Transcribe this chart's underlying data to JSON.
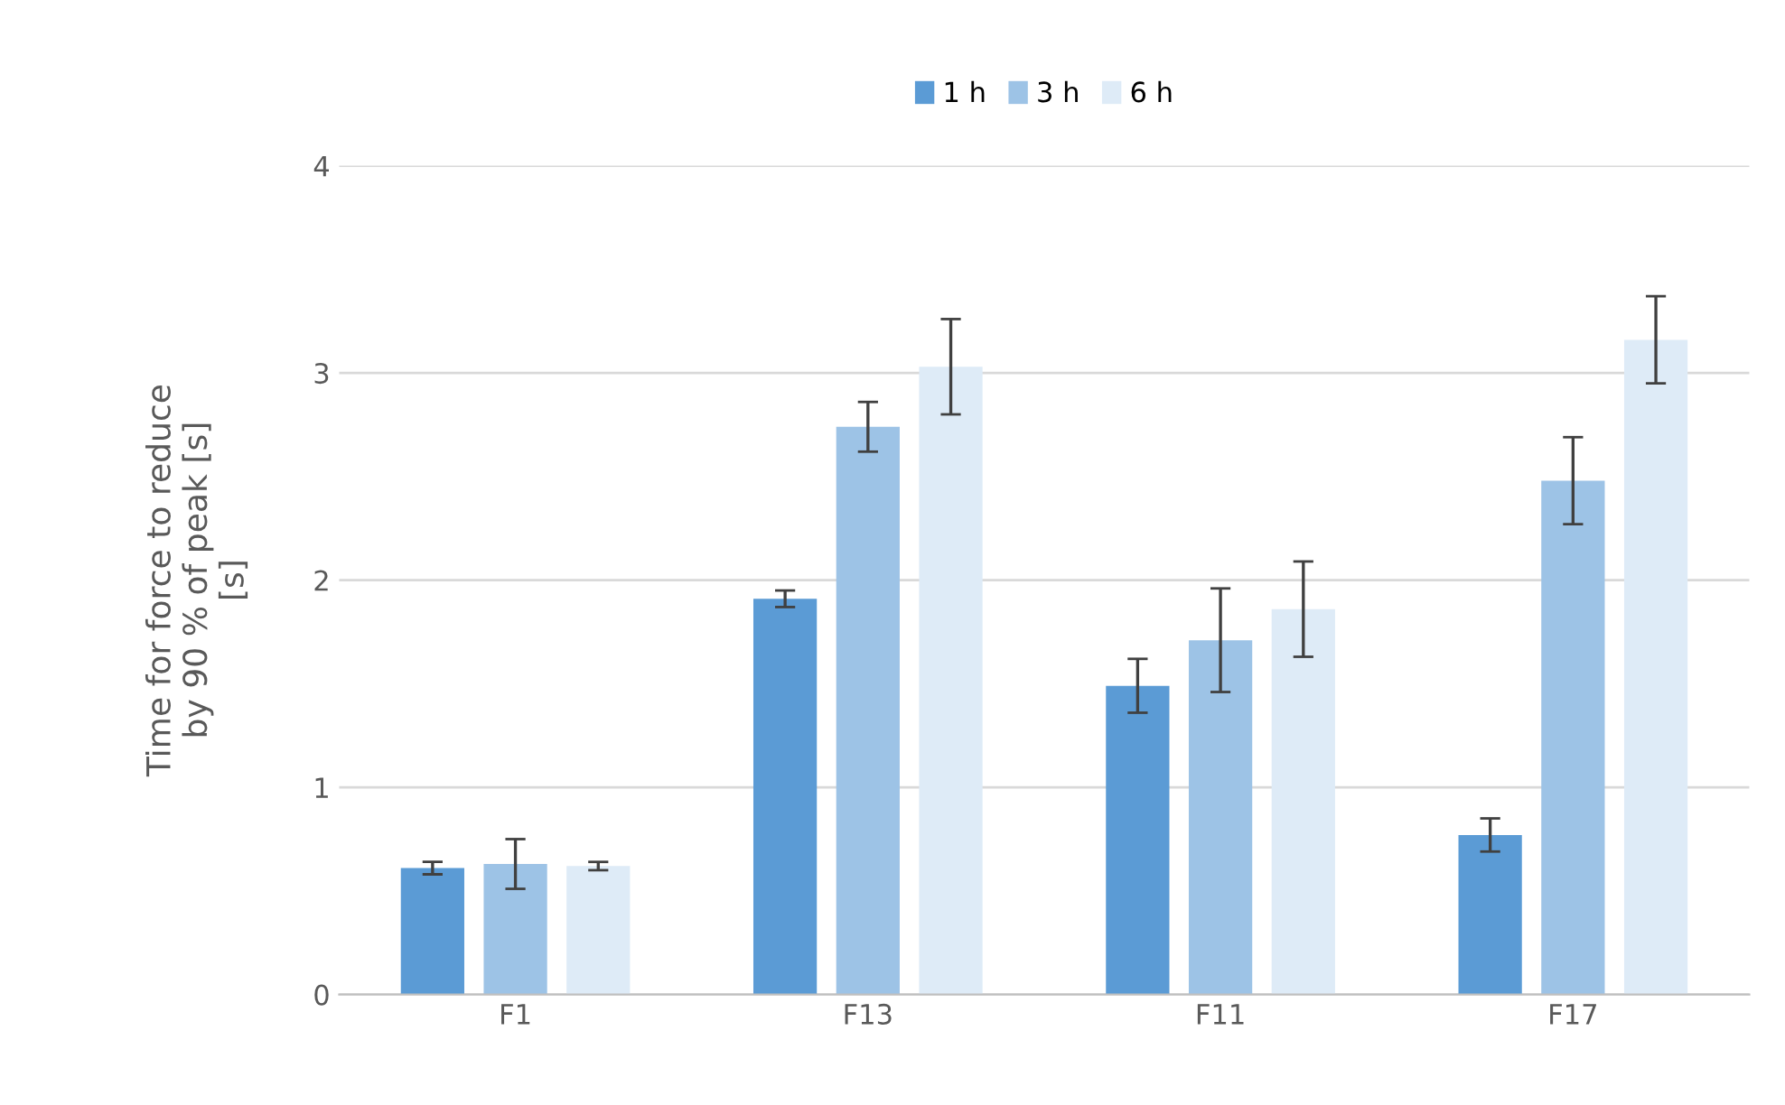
{
  "chart_data": {
    "type": "bar",
    "ylabel": "Time for force to reduce\nby 90 % of peak [s]\n[s]",
    "categories": [
      "F1",
      "F13",
      "F11",
      "F17"
    ],
    "series": [
      {
        "name": "1 h",
        "color": "#5b9bd5",
        "values": [
          0.61,
          1.91,
          1.49,
          0.77
        ],
        "errors": [
          0.03,
          0.04,
          0.13,
          0.08
        ]
      },
      {
        "name": "3 h",
        "color": "#9dc3e6",
        "values": [
          0.63,
          2.74,
          1.71,
          2.48
        ],
        "errors": [
          0.12,
          0.12,
          0.25,
          0.21
        ]
      },
      {
        "name": "6 h",
        "color": "#deebf7",
        "values": [
          0.62,
          3.03,
          1.86,
          3.16
        ],
        "errors": [
          0.02,
          0.23,
          0.23,
          0.21
        ]
      }
    ],
    "ylim": [
      0,
      4
    ],
    "yticks": [
      0,
      1,
      2,
      3,
      4
    ],
    "grid": "y",
    "legend": "top"
  }
}
